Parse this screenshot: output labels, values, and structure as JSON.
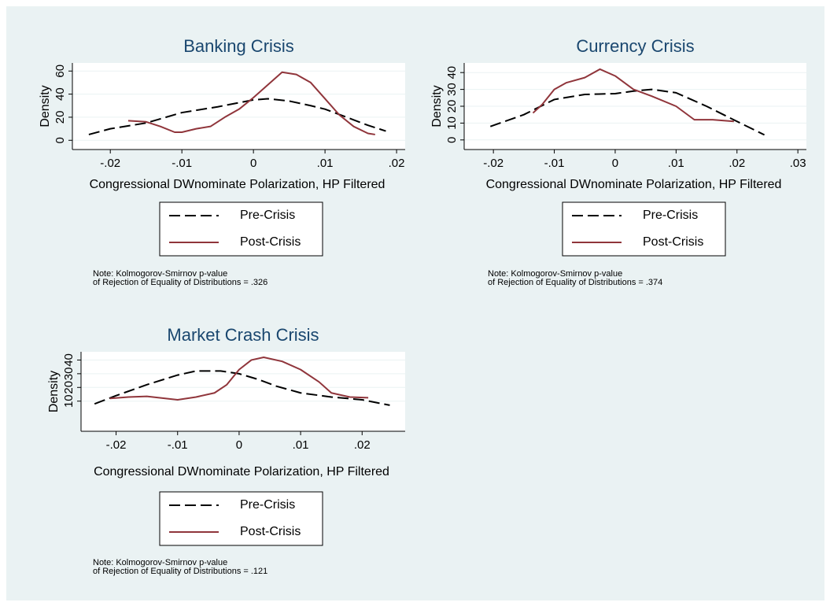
{
  "chart_data": [
    {
      "type": "line",
      "title": "Banking Crisis",
      "xlabel": "Congressional DWnominate Polarization, HP Filtered",
      "ylabel": "Density",
      "xlim": [
        -0.0253,
        0.0212
      ],
      "ylim": [
        -8,
        67
      ],
      "xticks": [
        {
          "value": -0.02,
          "label": "-.02"
        },
        {
          "value": -0.01,
          "label": "-.01"
        },
        0,
        {
          "value": 0.01,
          "label": ".01"
        },
        {
          "value": 0.02,
          "label": ".02"
        }
      ],
      "yticks": [
        0,
        20,
        40,
        60
      ],
      "grid": true,
      "series": [
        {
          "name": "Pre-Crisis",
          "color": "#000000",
          "line_style": "dashed",
          "x": [
            -0.023,
            -0.02,
            -0.015,
            -0.01,
            -0.005,
            0,
            0.002,
            0.005,
            0.008,
            0.01,
            0.013,
            0.016,
            0.0185
          ],
          "values": [
            5,
            10,
            15,
            24,
            29,
            35,
            36,
            34,
            30,
            27,
            20,
            13,
            8
          ]
        },
        {
          "name": "Post-Crisis",
          "color": "#90353b",
          "line_style": "solid",
          "x": [
            -0.0175,
            -0.015,
            -0.013,
            -0.011,
            -0.01,
            -0.008,
            -0.006,
            -0.004,
            -0.002,
            0,
            0.002,
            0.004,
            0.006,
            0.008,
            0.01,
            0.012,
            0.014,
            0.016,
            0.017
          ],
          "values": [
            17,
            16,
            12,
            7,
            7,
            10,
            12,
            20,
            27,
            37,
            48,
            59,
            57,
            50,
            36,
            22,
            12,
            6,
            5
          ]
        }
      ],
      "notes": [
        "Note: Kolmogorov-Smirnov p-value",
        "of Rejection of Equality of Distributions = .326"
      ]
    },
    {
      "type": "line",
      "title": "Currency Crisis",
      "xlabel": "Congressional DWnominate Polarization, HP Filtered",
      "ylabel": "Density",
      "xlim": [
        -0.0248,
        0.0314
      ],
      "ylim": [
        -5.7,
        45.7
      ],
      "xticks": [
        {
          "value": -0.02,
          "label": "-.02"
        },
        {
          "value": -0.01,
          "label": "-.01"
        },
        0,
        {
          "value": 0.01,
          "label": ".01"
        },
        {
          "value": 0.02,
          "label": ".02"
        },
        {
          "value": 0.03,
          "label": ".03"
        }
      ],
      "yticks": [
        0,
        10,
        20,
        30,
        40
      ],
      "grid": true,
      "series": [
        {
          "name": "Pre-Crisis",
          "color": "#000000",
          "line_style": "dashed",
          "x": [
            -0.0205,
            -0.015,
            -0.01,
            -0.005,
            0,
            0.003,
            0.006,
            0.01,
            0.015,
            0.02,
            0.0245
          ],
          "values": [
            8,
            15,
            24,
            27,
            27.5,
            29,
            30,
            28,
            20,
            11,
            3
          ]
        },
        {
          "name": "Post-Crisis",
          "color": "#90353b",
          "line_style": "solid",
          "x": [
            -0.0135,
            -0.012,
            -0.01,
            -0.008,
            -0.005,
            -0.0025,
            0,
            0.003,
            0.006,
            0.01,
            0.013,
            0.016,
            0.0195
          ],
          "values": [
            16,
            21,
            30,
            34,
            37,
            42,
            38,
            30,
            26,
            20,
            12,
            12,
            11
          ]
        }
      ],
      "notes": [
        "Note: Kolmogorov-Smirnov p-value",
        "of Rejection of Equality of Distributions = .374"
      ]
    },
    {
      "type": "line",
      "title": "Market Crash Crisis",
      "xlabel": "Congressional DWnominate Polarization, HP Filtered",
      "ylabel": "Density",
      "xlim": [
        -0.0257,
        0.027
      ],
      "ylim": [
        -12,
        46
      ],
      "xticks": [
        {
          "value": -0.02,
          "label": "-.02"
        },
        {
          "value": -0.01,
          "label": "-.01"
        },
        0,
        {
          "value": 0.01,
          "label": ".01"
        },
        {
          "value": 0.02,
          "label": ".02"
        }
      ],
      "yticks": [
        10,
        20,
        30,
        40
      ],
      "grid": true,
      "series": [
        {
          "name": "Pre-Crisis",
          "color": "#000000",
          "line_style": "dashed",
          "x": [
            -0.0235,
            -0.02,
            -0.015,
            -0.01,
            -0.007,
            -0.003,
            0,
            0.003,
            0.006,
            0.01,
            0.015,
            0.02,
            0.0245
          ],
          "values": [
            8,
            14,
            22,
            29,
            32,
            32,
            30,
            26,
            21,
            16,
            13,
            11,
            7
          ]
        },
        {
          "name": "Post-Crisis",
          "color": "#90353b",
          "line_style": "solid",
          "x": [
            -0.021,
            -0.018,
            -0.015,
            -0.012,
            -0.01,
            -0.007,
            -0.004,
            -0.002,
            0,
            0.002,
            0.004,
            0.007,
            0.01,
            0.013,
            0.015,
            0.018,
            0.021
          ],
          "values": [
            12,
            13,
            13.5,
            12,
            11,
            13,
            16,
            22,
            33,
            40,
            42,
            39,
            33,
            24,
            16,
            13,
            12.5
          ]
        }
      ],
      "notes": [
        "Note: Kolmogorov-Smirnov p-value",
        "of Rejection of Equality of Distributions = .121"
      ]
    }
  ]
}
